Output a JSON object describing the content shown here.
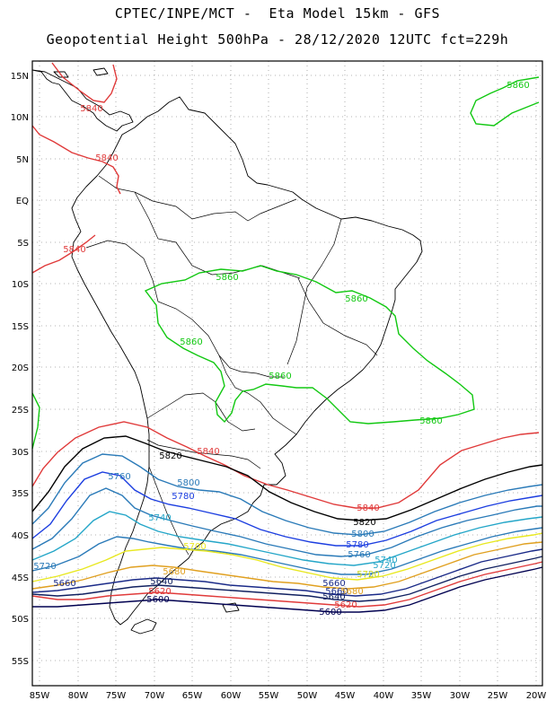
{
  "header": {
    "line1": "CPTEC/INPE/MCT -  Eta Model 15km - GFS",
    "line2": "Geopotential Height 500hPa - 28/12/2020 12UTC fct=229h"
  },
  "axes": {
    "lat_labels": [
      "15N",
      "10N",
      "5N",
      "EQ",
      "5S",
      "10S",
      "15S",
      "20S",
      "25S",
      "30S",
      "35S",
      "40S",
      "45S",
      "50S",
      "55S"
    ],
    "lon_labels": [
      "85W",
      "80W",
      "75W",
      "70W",
      "65W",
      "60W",
      "55W",
      "50W",
      "45W",
      "40W",
      "35W",
      "30W",
      "25W",
      "20W"
    ]
  },
  "map_data": {
    "variable": "Geopotential Height 500hPa",
    "units": "gpm",
    "lon_range": [
      -86,
      -20
    ],
    "lat_range": [
      -59,
      17
    ],
    "grid": true,
    "contour_labels": [
      {
        "value": "5840",
        "color": "#e03a3a"
      },
      {
        "value": "5840",
        "color": "#e03a3a"
      },
      {
        "value": "5840",
        "color": "#e03a3a"
      },
      {
        "value": "5860",
        "color": "#12c812"
      },
      {
        "value": "5860",
        "color": "#12c812"
      },
      {
        "value": "5860",
        "color": "#12c812"
      },
      {
        "value": "5860",
        "color": "#12c812"
      },
      {
        "value": "5860",
        "color": "#12c812"
      },
      {
        "value": "5860",
        "color": "#12c812"
      },
      {
        "value": "5820",
        "color": "#000000"
      },
      {
        "value": "5840",
        "color": "#e03a3a"
      },
      {
        "value": "5760",
        "color": "#2a7ab8"
      },
      {
        "value": "5800",
        "color": "#2a7ab8"
      },
      {
        "value": "5780",
        "color": "#1c3ee0"
      },
      {
        "value": "5740",
        "color": "#24a6c8"
      },
      {
        "value": "5840",
        "color": "#e03a3a"
      },
      {
        "value": "5820",
        "color": "#000000"
      },
      {
        "value": "5800",
        "color": "#2a7ab8"
      },
      {
        "value": "5780",
        "color": "#1c3ee0"
      },
      {
        "value": "5760",
        "color": "#2a7ab8"
      },
      {
        "value": "5740",
        "color": "#24a6c8"
      },
      {
        "value": "5720",
        "color": "#2a7ab8"
      },
      {
        "value": "5720",
        "color": "#24a6c8"
      },
      {
        "value": "5700",
        "color": "#e8e820"
      },
      {
        "value": "5720",
        "color": "#2a7ab8"
      },
      {
        "value": "5700",
        "color": "#e8e820"
      },
      {
        "value": "5680",
        "color": "#e0a020"
      },
      {
        "value": "5660",
        "color": "#1a2a88"
      },
      {
        "value": "5640",
        "color": "#102060"
      },
      {
        "value": "5620",
        "color": "#e03a3a"
      },
      {
        "value": "5600",
        "color": "#000050"
      },
      {
        "value": "5660",
        "color": "#1a2a88"
      },
      {
        "value": "5660",
        "color": "#1a2a88"
      },
      {
        "value": "5680",
        "color": "#e0a020"
      },
      {
        "value": "5640",
        "color": "#102060"
      },
      {
        "value": "5620",
        "color": "#e03a3a"
      },
      {
        "value": "5600",
        "color": "#000050"
      }
    ]
  }
}
